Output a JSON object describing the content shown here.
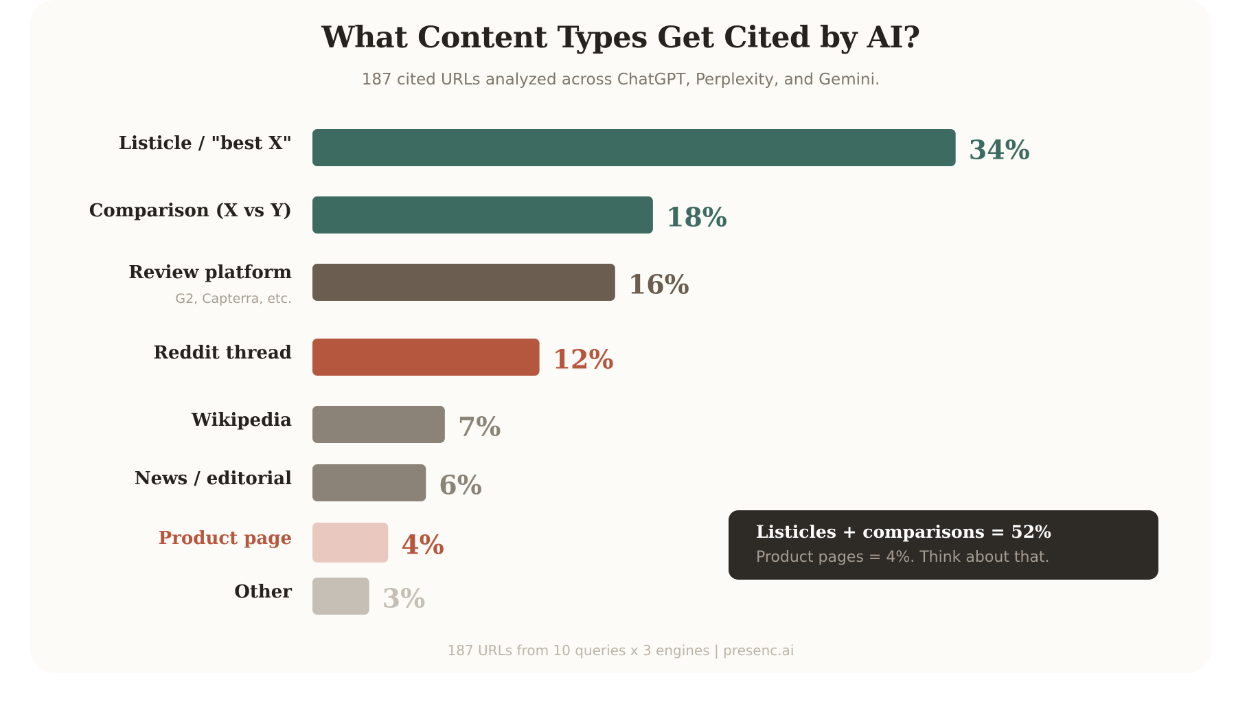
{
  "header": {
    "title": "What Content Types Get Cited by AI?",
    "subtitle": "187 cited URLs analyzed across ChatGPT, Perplexity, and Gemini."
  },
  "chart_data": {
    "type": "bar",
    "orientation": "horizontal",
    "title": "What Content Types Get Cited by AI?",
    "subtitle": "187 cited URLs analyzed across ChatGPT, Perplexity, and Gemini.",
    "categories": [
      "Listicle / \"best X\"",
      "Comparison (X vs Y)",
      "Review platform",
      "Reddit thread",
      "Wikipedia",
      "News / editorial",
      "Product page",
      "Other"
    ],
    "category_notes": [
      "",
      "",
      "G2, Capterra, etc.",
      "",
      "",
      "",
      "",
      ""
    ],
    "values": [
      34,
      18,
      16,
      12,
      7,
      6,
      4,
      3
    ],
    "value_labels": [
      "34%",
      "18%",
      "16%",
      "12%",
      "7%",
      "6%",
      "4%",
      "3%"
    ],
    "bar_colors": [
      "#3d6b61",
      "#3d6b61",
      "#6b5d4f",
      "#b5573e",
      "#8b8377",
      "#8b8377",
      "#e8c8bf",
      "#c5bfb5"
    ],
    "label_colors": [
      "#26221e",
      "#26221e",
      "#26221e",
      "#26221e",
      "#26221e",
      "#26221e",
      "#b5573e",
      "#26221e"
    ],
    "value_colors": [
      "#3d6b61",
      "#3d6b61",
      "#6b5d4f",
      "#b5573e",
      "#8b8377",
      "#8b8377",
      "#b5573e",
      "#c5bfb5"
    ],
    "grid": false,
    "xlabel": "",
    "ylabel": ""
  },
  "callout": {
    "main": "Listicles + comparisons = 52%",
    "sub": "Product pages = 4%. Think about that."
  },
  "footer": {
    "text": "187 URLs from 10 queries x 3 engines | presenc.ai"
  }
}
